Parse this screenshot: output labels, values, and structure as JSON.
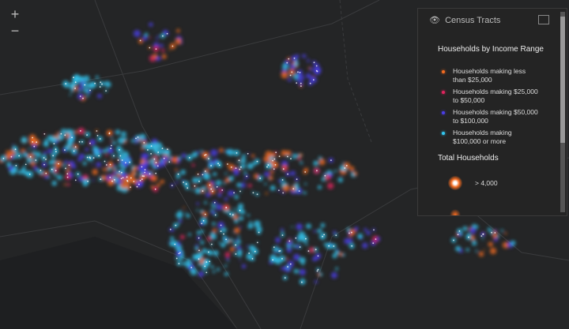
{
  "zoom": {
    "in": "+",
    "out": "−"
  },
  "legend": {
    "layer_title": "Census Tracts",
    "income_title": "Households by Income Range",
    "income_items": [
      {
        "label": "Households making less than $25,000",
        "color": "#f26b21"
      },
      {
        "label": "Households making $25,000 to $50,000",
        "color": "#e0245e"
      },
      {
        "label": "Households making $50,000 to $100,000",
        "color": "#4b3ee6"
      },
      {
        "label": "Households making $100,000 or more",
        "color": "#33c7f0"
      }
    ],
    "size_title": "Total Households",
    "size_items": [
      "> 4,000"
    ]
  }
}
